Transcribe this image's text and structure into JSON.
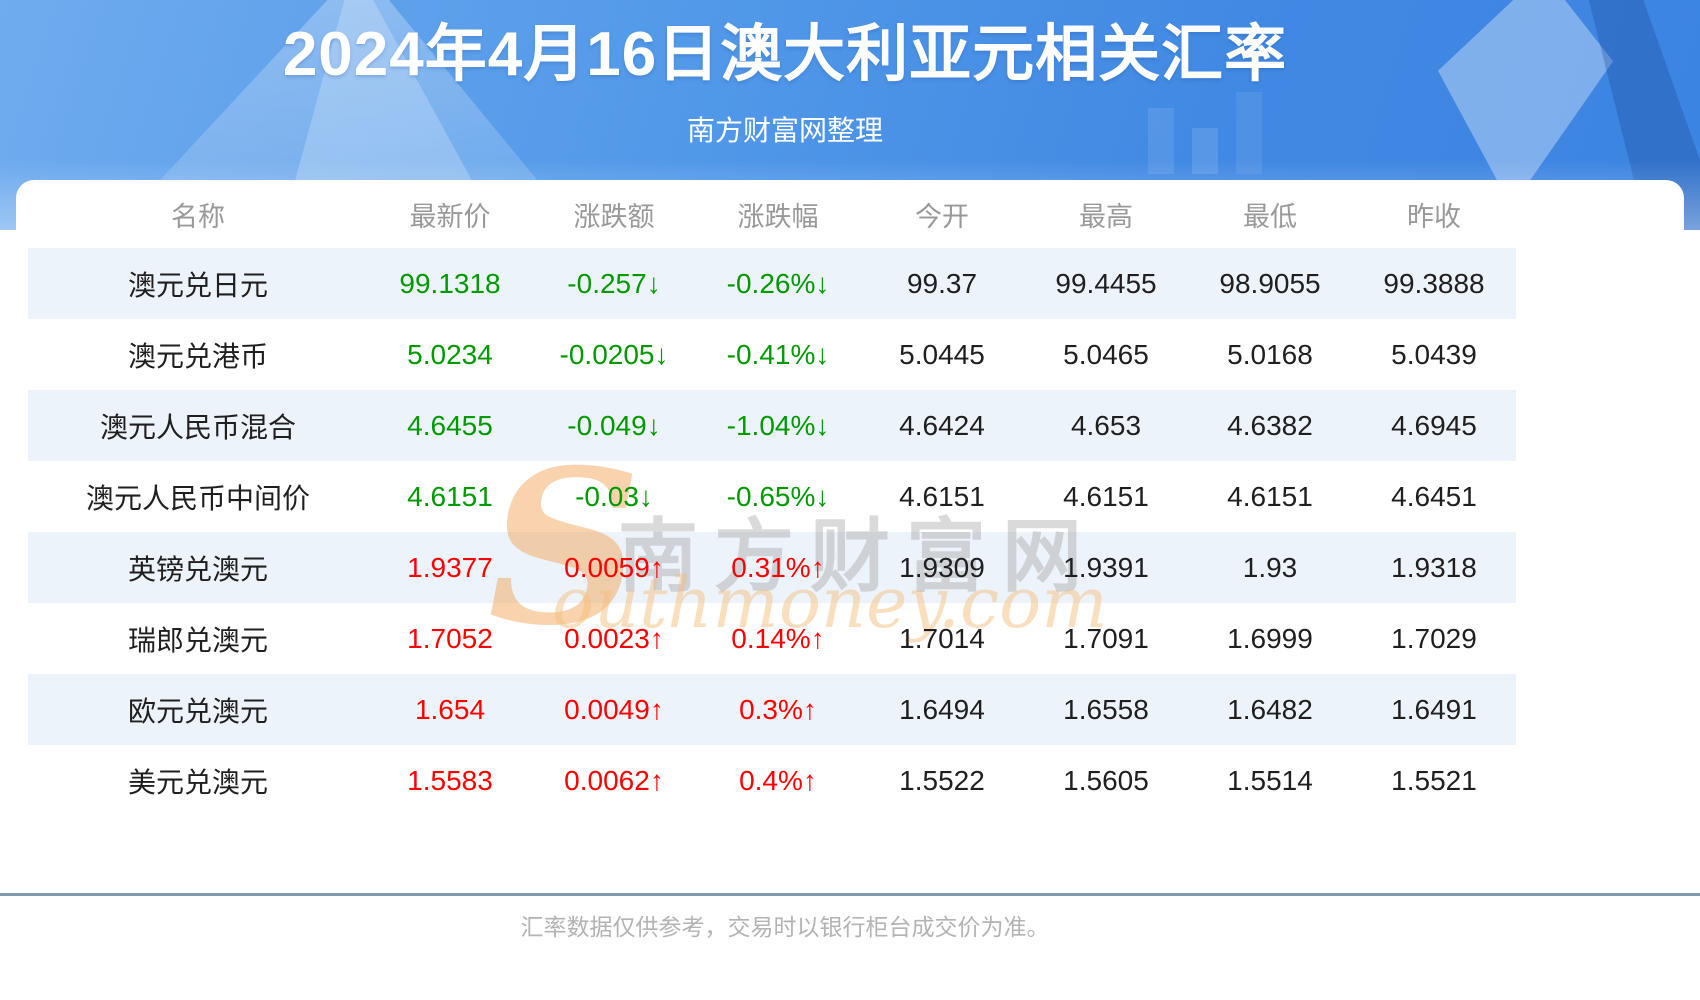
{
  "page": {
    "title": "2024年4月16日澳大利亚元相关汇率",
    "subtitle": "南方财富网整理",
    "footer_note": "汇率数据仅供参考，交易时以银行柜台成交价为准。"
  },
  "watermark": {
    "initial": "S",
    "cn": "南方财富网",
    "domain": "outhmoney.com"
  },
  "colors": {
    "up_color": "#ff0000",
    "down_color": "#009a00",
    "header_text": "#999999",
    "cell_text": "#1f1f1f",
    "row_alt_bg": "#edf3fb",
    "divider": "#8199b1",
    "footer_text": "#b3b3b3",
    "banner_blue": "#4189e3"
  },
  "chart_data": {
    "type": "table",
    "title": "2024年4月16日澳大利亚元相关汇率",
    "columns": [
      "名称",
      "最新价",
      "涨跌额",
      "涨跌幅",
      "今开",
      "最高",
      "最低",
      "昨收"
    ],
    "rows": [
      {
        "name": "澳元兑日元",
        "trend": "down",
        "values": [
          "99.1318",
          "-0.257↓",
          "-0.26%↓",
          "99.37",
          "99.4455",
          "98.9055",
          "99.3888"
        ]
      },
      {
        "name": "澳元兑港币",
        "trend": "down",
        "values": [
          "5.0234",
          "-0.0205↓",
          "-0.41%↓",
          "5.0445",
          "5.0465",
          "5.0168",
          "5.0439"
        ]
      },
      {
        "name": "澳元人民币混合",
        "trend": "down",
        "values": [
          "4.6455",
          "-0.049↓",
          "-1.04%↓",
          "4.6424",
          "4.653",
          "4.6382",
          "4.6945"
        ]
      },
      {
        "name": "澳元人民币中间价",
        "trend": "down",
        "values": [
          "4.6151",
          "-0.03↓",
          "-0.65%↓",
          "4.6151",
          "4.6151",
          "4.6151",
          "4.6451"
        ]
      },
      {
        "name": "英镑兑澳元",
        "trend": "up",
        "values": [
          "1.9377",
          "0.0059↑",
          "0.31%↑",
          "1.9309",
          "1.9391",
          "1.93",
          "1.9318"
        ]
      },
      {
        "name": "瑞郎兑澳元",
        "trend": "up",
        "values": [
          "1.7052",
          "0.0023↑",
          "0.14%↑",
          "1.7014",
          "1.7091",
          "1.6999",
          "1.7029"
        ]
      },
      {
        "name": "欧元兑澳元",
        "trend": "up",
        "values": [
          "1.654",
          "0.0049↑",
          "0.3%↑",
          "1.6494",
          "1.6558",
          "1.6482",
          "1.6491"
        ]
      },
      {
        "name": "美元兑澳元",
        "trend": "up",
        "values": [
          "1.5583",
          "0.0062↑",
          "0.4%↑",
          "1.5522",
          "1.5605",
          "1.5514",
          "1.5521"
        ]
      }
    ]
  }
}
